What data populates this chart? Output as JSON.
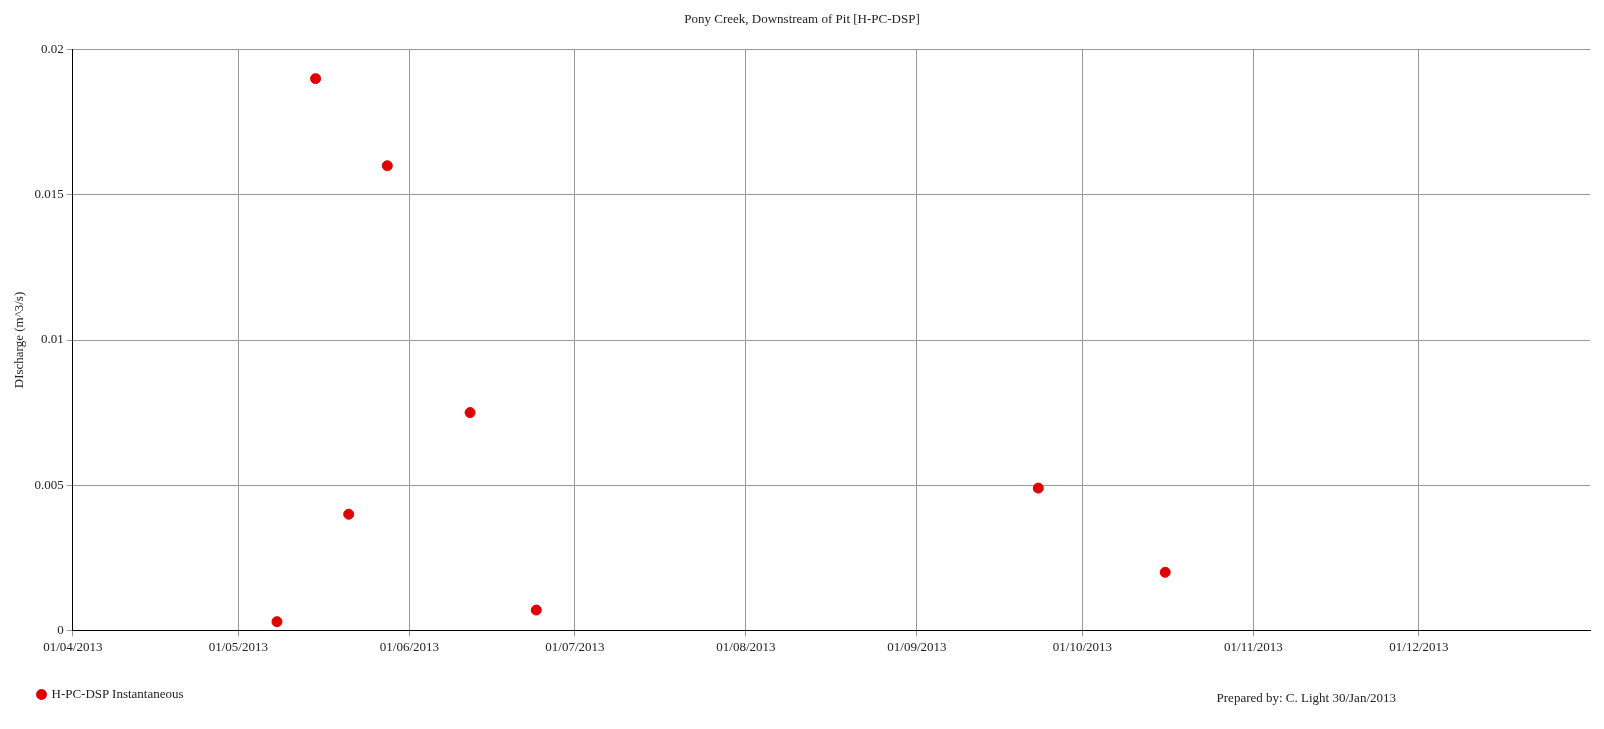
{
  "chart_data": {
    "type": "scatter",
    "title": "Pony Creek, Downstream of Pit [H-PC-DSP]",
    "ylabel": "DIscharge (m^3/s)",
    "x": [
      "2013-05-08",
      "2013-05-15",
      "2013-05-21",
      "2013-05-28",
      "2013-06-12",
      "2013-06-24",
      "2013-09-23",
      "2013-10-16"
    ],
    "series": [
      {
        "name": "H-PC-DSP Instantaneous",
        "color": "#e00000",
        "values": [
          0.0003,
          0.019,
          0.004,
          0.016,
          0.0075,
          0.0007,
          0.0049,
          0.002
        ]
      }
    ],
    "xlim": [
      "2013-04-01",
      "2014-01-01"
    ],
    "xticks": [
      {
        "value": "2013-04-01",
        "label": "01/04/2013"
      },
      {
        "value": "2013-05-01",
        "label": "01/05/2013"
      },
      {
        "value": "2013-06-01",
        "label": "01/06/2013"
      },
      {
        "value": "2013-07-01",
        "label": "01/07/2013"
      },
      {
        "value": "2013-08-01",
        "label": "01/08/2013"
      },
      {
        "value": "2013-09-01",
        "label": "01/09/2013"
      },
      {
        "value": "2013-10-01",
        "label": "01/10/2013"
      },
      {
        "value": "2013-11-01",
        "label": "01/11/2013"
      },
      {
        "value": "2013-12-01",
        "label": "01/12/2013"
      }
    ],
    "ylim": [
      0,
      0.02
    ],
    "yticks": [
      0,
      0.005,
      0.01,
      0.015,
      0.02
    ],
    "grid": true,
    "legend": "bottom left",
    "marker": "circle",
    "annotations": [
      "Prepared by: C. Light 30/Jan/2013"
    ]
  }
}
